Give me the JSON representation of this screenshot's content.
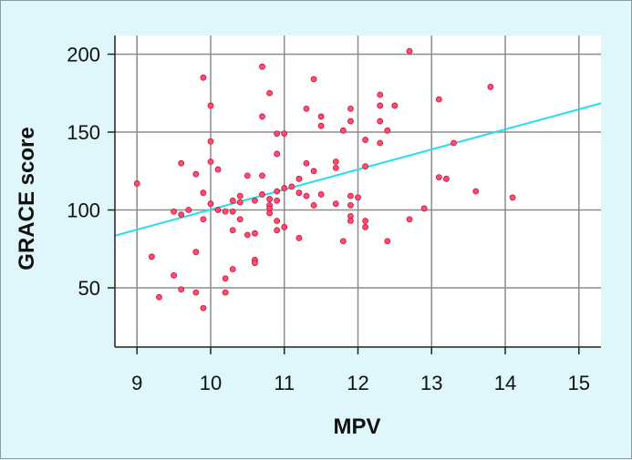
{
  "chart_data": {
    "type": "scatter",
    "xlabel": "MPV",
    "ylabel": "GRACE score",
    "xlim": [
      8.7,
      15.3
    ],
    "ylim": [
      12,
      212
    ],
    "x_ticks": [
      9,
      10,
      11,
      12,
      13,
      14,
      15
    ],
    "y_ticks": [
      50,
      100,
      150,
      200
    ],
    "grid": true,
    "colors": {
      "background": "#dff7fb",
      "plot_area": "#ffffff",
      "grid": "#8c8c8c",
      "points": "#ff4d6d",
      "point_edge": "#c8103e",
      "fit_line": "#22e0ee"
    },
    "fit_line": {
      "x": [
        8.7,
        15.3
      ],
      "y": [
        83.5,
        168.5
      ]
    },
    "points": [
      {
        "x": 9.0,
        "y": 117
      },
      {
        "x": 9.2,
        "y": 70
      },
      {
        "x": 9.3,
        "y": 44
      },
      {
        "x": 9.5,
        "y": 58
      },
      {
        "x": 9.5,
        "y": 99
      },
      {
        "x": 9.6,
        "y": 130
      },
      {
        "x": 9.6,
        "y": 97
      },
      {
        "x": 9.6,
        "y": 49
      },
      {
        "x": 9.7,
        "y": 100
      },
      {
        "x": 9.8,
        "y": 123
      },
      {
        "x": 9.8,
        "y": 73
      },
      {
        "x": 9.8,
        "y": 47
      },
      {
        "x": 9.9,
        "y": 185
      },
      {
        "x": 9.9,
        "y": 111
      },
      {
        "x": 9.9,
        "y": 94
      },
      {
        "x": 9.9,
        "y": 37
      },
      {
        "x": 10.0,
        "y": 167
      },
      {
        "x": 10.0,
        "y": 144
      },
      {
        "x": 10.0,
        "y": 131
      },
      {
        "x": 10.0,
        "y": 104
      },
      {
        "x": 10.1,
        "y": 126
      },
      {
        "x": 10.1,
        "y": 100
      },
      {
        "x": 10.2,
        "y": 99
      },
      {
        "x": 10.2,
        "y": 56
      },
      {
        "x": 10.2,
        "y": 47
      },
      {
        "x": 10.3,
        "y": 106
      },
      {
        "x": 10.3,
        "y": 99
      },
      {
        "x": 10.3,
        "y": 87
      },
      {
        "x": 10.3,
        "y": 62
      },
      {
        "x": 10.4,
        "y": 109
      },
      {
        "x": 10.4,
        "y": 105
      },
      {
        "x": 10.4,
        "y": 94
      },
      {
        "x": 10.5,
        "y": 122
      },
      {
        "x": 10.5,
        "y": 84
      },
      {
        "x": 10.6,
        "y": 106
      },
      {
        "x": 10.6,
        "y": 85
      },
      {
        "x": 10.6,
        "y": 68
      },
      {
        "x": 10.6,
        "y": 66
      },
      {
        "x": 10.7,
        "y": 192
      },
      {
        "x": 10.7,
        "y": 160
      },
      {
        "x": 10.7,
        "y": 122
      },
      {
        "x": 10.7,
        "y": 110
      },
      {
        "x": 10.8,
        "y": 175
      },
      {
        "x": 10.8,
        "y": 107
      },
      {
        "x": 10.8,
        "y": 103
      },
      {
        "x": 10.8,
        "y": 101
      },
      {
        "x": 10.8,
        "y": 98
      },
      {
        "x": 10.9,
        "y": 149
      },
      {
        "x": 10.9,
        "y": 136
      },
      {
        "x": 10.9,
        "y": 112
      },
      {
        "x": 10.9,
        "y": 106
      },
      {
        "x": 10.9,
        "y": 93
      },
      {
        "x": 10.9,
        "y": 87
      },
      {
        "x": 11.0,
        "y": 149
      },
      {
        "x": 11.0,
        "y": 114
      },
      {
        "x": 11.0,
        "y": 89
      },
      {
        "x": 11.1,
        "y": 115
      },
      {
        "x": 11.2,
        "y": 120
      },
      {
        "x": 11.2,
        "y": 111
      },
      {
        "x": 11.2,
        "y": 82
      },
      {
        "x": 11.3,
        "y": 165
      },
      {
        "x": 11.3,
        "y": 130
      },
      {
        "x": 11.3,
        "y": 109
      },
      {
        "x": 11.4,
        "y": 184
      },
      {
        "x": 11.4,
        "y": 125
      },
      {
        "x": 11.4,
        "y": 103
      },
      {
        "x": 11.5,
        "y": 160
      },
      {
        "x": 11.5,
        "y": 154
      },
      {
        "x": 11.5,
        "y": 110
      },
      {
        "x": 11.7,
        "y": 131
      },
      {
        "x": 11.7,
        "y": 127
      },
      {
        "x": 11.7,
        "y": 104
      },
      {
        "x": 11.8,
        "y": 151
      },
      {
        "x": 11.8,
        "y": 80
      },
      {
        "x": 11.9,
        "y": 165
      },
      {
        "x": 11.9,
        "y": 157
      },
      {
        "x": 11.9,
        "y": 109
      },
      {
        "x": 11.9,
        "y": 103
      },
      {
        "x": 11.9,
        "y": 96
      },
      {
        "x": 11.9,
        "y": 93
      },
      {
        "x": 12.0,
        "y": 108
      },
      {
        "x": 12.1,
        "y": 145
      },
      {
        "x": 12.1,
        "y": 128
      },
      {
        "x": 12.1,
        "y": 93
      },
      {
        "x": 12.1,
        "y": 89
      },
      {
        "x": 12.3,
        "y": 174
      },
      {
        "x": 12.3,
        "y": 167
      },
      {
        "x": 12.3,
        "y": 157
      },
      {
        "x": 12.3,
        "y": 143
      },
      {
        "x": 12.4,
        "y": 151
      },
      {
        "x": 12.4,
        "y": 80
      },
      {
        "x": 12.5,
        "y": 167
      },
      {
        "x": 12.7,
        "y": 202
      },
      {
        "x": 12.7,
        "y": 94
      },
      {
        "x": 12.9,
        "y": 101
      },
      {
        "x": 13.1,
        "y": 171
      },
      {
        "x": 13.1,
        "y": 121
      },
      {
        "x": 13.2,
        "y": 120
      },
      {
        "x": 13.3,
        "y": 143
      },
      {
        "x": 13.6,
        "y": 112
      },
      {
        "x": 13.8,
        "y": 179
      },
      {
        "x": 14.1,
        "y": 108
      }
    ]
  }
}
